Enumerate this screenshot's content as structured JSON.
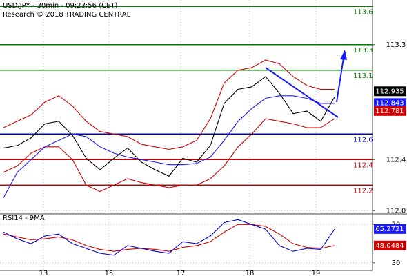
{
  "chart_data": [
    {
      "type": "line",
      "title": "USD/JPY - 30min - 09:23:56 (CET)",
      "subtitle": "Research © 2018 TRADING CENTRAL",
      "x": [
        0,
        1,
        2,
        3,
        4,
        5,
        6,
        7,
        8,
        9,
        10,
        11,
        12,
        13,
        14,
        15,
        16,
        17,
        18,
        19,
        20,
        21,
        22,
        23,
        24
      ],
      "xlim": [
        -0.25,
        26.75
      ],
      "xticks": [
        2.9,
        7.65,
        12.85,
        17.85,
        22.65
      ],
      "ylim": [
        111.98,
        113.65
      ],
      "yticks": [
        {
          "value": 112,
          "label": "112.0"
        },
        112.4,
        113.3
      ],
      "grid": true,
      "series": [
        {
          "color": "#cc0000",
          "values": [
            112.65,
            112.7,
            112.75,
            112.85,
            112.9,
            112.82,
            112.7,
            112.62,
            112.6,
            112.58,
            112.52,
            112.5,
            112.48,
            112.5,
            112.55,
            112.72,
            113.0,
            113.1,
            113.12,
            113.18,
            113.15,
            113.05,
            112.98,
            112.95,
            112.95
          ]
        },
        {
          "color": "#cc0000",
          "values": [
            112.3,
            112.35,
            112.45,
            112.5,
            112.5,
            112.4,
            112.2,
            112.15,
            112.2,
            112.25,
            112.22,
            112.2,
            112.18,
            112.2,
            112.2,
            112.25,
            112.35,
            112.5,
            112.6,
            112.72,
            112.7,
            112.68,
            112.65,
            112.65,
            112.72
          ]
        },
        {
          "color": "#1a1aff",
          "values": [
            112.1,
            112.3,
            112.4,
            112.5,
            112.55,
            112.6,
            112.58,
            112.5,
            112.45,
            112.42,
            112.4,
            112.38,
            112.36,
            112.36,
            112.37,
            112.42,
            112.55,
            112.7,
            112.8,
            112.88,
            112.9,
            112.9,
            112.88,
            112.84,
            112.84
          ]
        },
        {
          "color": "#000000",
          "values": [
            112.49,
            112.51,
            112.57,
            112.68,
            112.7,
            112.59,
            112.41,
            112.32,
            112.41,
            112.49,
            112.38,
            112.32,
            112.27,
            112.41,
            112.38,
            112.51,
            112.84,
            112.95,
            112.97,
            113.05,
            112.92,
            112.76,
            112.78,
            112.7,
            112.89
          ]
        }
      ],
      "levels": [
        {
          "value": 113.6,
          "color": "#007a00"
        },
        {
          "value": 113.3,
          "color": "#007a00"
        },
        {
          "value": 113.1,
          "color": "#007a00"
        },
        {
          "value": 112.6,
          "color": "#0000cc"
        },
        {
          "value": 112.4,
          "color": "#cc0000"
        },
        {
          "value": 112.2,
          "color": "#cc0000"
        }
      ],
      "price_tags": [
        {
          "value": 112.935,
          "color": "#000000"
        },
        {
          "value": 112.843,
          "color": "#1a1aff"
        },
        {
          "value": 112.781,
          "color": "#cc0000"
        }
      ]
    },
    {
      "type": "line",
      "title": "RSI14 - 9MA",
      "x": [
        0,
        1,
        2,
        3,
        4,
        5,
        6,
        7,
        8,
        9,
        10,
        11,
        12,
        13,
        14,
        15,
        16,
        17,
        18,
        19,
        20,
        21,
        22,
        23,
        24
      ],
      "xlim": [
        -0.25,
        26.75
      ],
      "xticks": [
        {
          "value": 2.9,
          "label": "13"
        },
        {
          "value": 7.65,
          "label": "15"
        },
        {
          "value": 12.85,
          "label": "17"
        },
        {
          "value": 17.85,
          "label": "18"
        },
        {
          "value": 22.65,
          "label": "19"
        }
      ],
      "ylim": [
        22,
        81
      ],
      "yticks": [
        30,
        70
      ],
      "grid": true,
      "series": [
        {
          "color": "#cc0000",
          "values": [
            60,
            57,
            54,
            55,
            57,
            54,
            48,
            44,
            42,
            44,
            45,
            44,
            42,
            46,
            48,
            52,
            62,
            70,
            70,
            68,
            60,
            50,
            46,
            45,
            48
          ]
        },
        {
          "color": "#0000cc",
          "values": [
            62,
            55,
            50,
            58,
            60,
            50,
            45,
            40,
            38,
            48,
            45,
            42,
            40,
            52,
            50,
            58,
            72,
            75,
            70,
            65,
            48,
            42,
            45,
            44,
            65
          ]
        }
      ],
      "price_tags": [
        {
          "value": 65.2721,
          "color": "#1a1aff"
        },
        {
          "value": 48.0484,
          "color": "#cc0000"
        }
      ]
    }
  ]
}
